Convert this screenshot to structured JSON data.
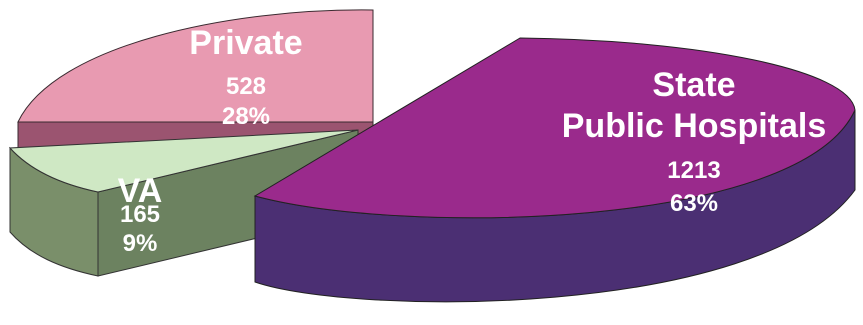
{
  "chart_data": {
    "type": "pie",
    "style": "3d-exploded",
    "slices": [
      {
        "name": "State Public Hospitals",
        "label_lines": [
          "State",
          "Public Hospitals"
        ],
        "value": 1213,
        "percent": "63%",
        "top_color": "#9a2a8c",
        "side_color": "#4b2f73"
      },
      {
        "name": "VA",
        "label_lines": [
          "VA"
        ],
        "value": 165,
        "percent": "9%",
        "top_color": "#cfe8c4",
        "side_color": "#7a8f6a"
      },
      {
        "name": "Private",
        "label_lines": [
          "Private"
        ],
        "value": 528,
        "percent": "28%",
        "top_color": "#e89ab1",
        "side_color": "#9b5470"
      }
    ]
  }
}
